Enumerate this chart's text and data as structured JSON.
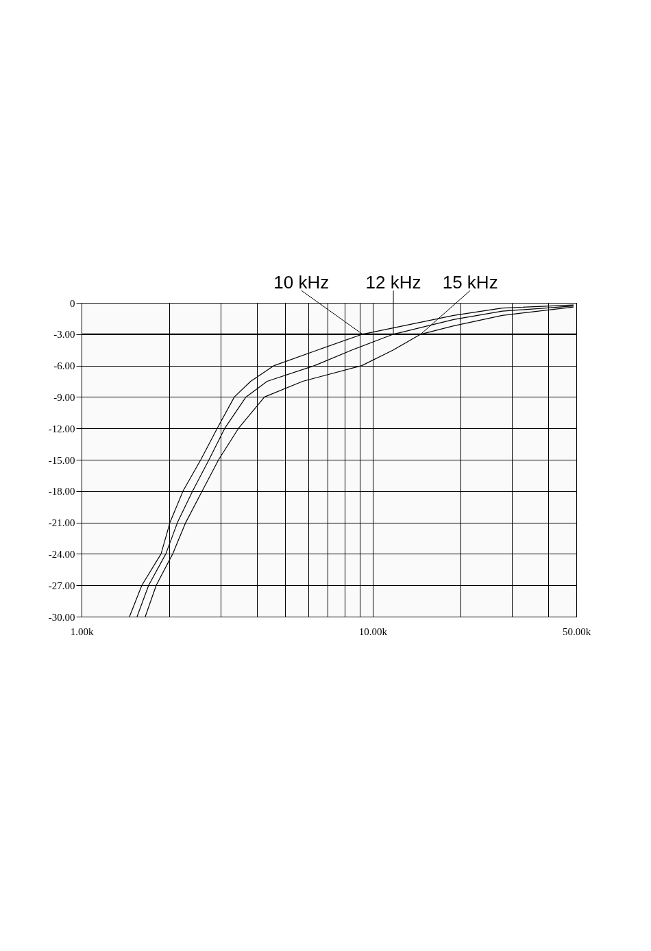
{
  "chart_data": {
    "type": "line",
    "log": "x",
    "legend": false,
    "grid": true,
    "marker": "none",
    "line_style": "solid",
    "xlim": [
      1000,
      50000
    ],
    "ylim": [
      -30,
      0
    ],
    "xticks": [
      {
        "value": 1000,
        "label": "1.00k"
      },
      {
        "value": 2000,
        "label": null
      },
      {
        "value": 3000,
        "label": null
      },
      {
        "value": 4000,
        "label": null
      },
      {
        "value": 5000,
        "label": null
      },
      {
        "value": 6000,
        "label": null
      },
      {
        "value": 7000,
        "label": null
      },
      {
        "value": 8000,
        "label": null
      },
      {
        "value": 9000,
        "label": null
      },
      {
        "value": 10000,
        "label": "10.00k"
      },
      {
        "value": 20000,
        "label": null
      },
      {
        "value": 30000,
        "label": null
      },
      {
        "value": 40000,
        "label": null
      },
      {
        "value": 50000,
        "label": "50.00k"
      }
    ],
    "yticks": [
      0,
      {
        "value": -3,
        "label": "-3.00"
      },
      {
        "value": -6,
        "label": "-6.00"
      },
      {
        "value": -9,
        "label": "-9.00"
      },
      {
        "value": -12,
        "label": "-12.00"
      },
      {
        "value": -15,
        "label": "-15.00"
      },
      {
        "value": -18,
        "label": "-18.00"
      },
      {
        "value": -21,
        "label": "-21.00"
      },
      {
        "value": -24,
        "label": "-24.00"
      },
      {
        "value": -27,
        "label": "-27.00"
      },
      {
        "value": -30,
        "label": "-30.00"
      }
    ],
    "ref_lines": [
      {
        "axis": "y",
        "value": -3,
        "color": "#000000"
      }
    ],
    "series": [
      {
        "name": "10 kHz",
        "color": "#000000",
        "x": [
          1461,
          1611,
          1875,
          2012,
          2230,
          2567,
          2923,
          3347,
          3810,
          4584,
          6480,
          9220,
          18950,
          27840,
          48900
        ],
        "values": [
          -30,
          -27,
          -24,
          -21,
          -18,
          -15,
          -12,
          -9,
          -7.5,
          -6,
          -4.5,
          -3,
          -1.2,
          -0.5,
          -0.2
        ]
      },
      {
        "name": "12 kHz",
        "color": "#000000",
        "x": [
          1551,
          1700,
          1947,
          2135,
          2406,
          2739,
          3102,
          3670,
          4340,
          6310,
          8500,
          11770,
          18950,
          27840,
          48900
        ],
        "values": [
          -30,
          -27,
          -24,
          -21,
          -18,
          -15,
          -12,
          -9,
          -7.5,
          -6,
          -4.5,
          -3,
          -1.6,
          -0.8,
          -0.3
        ]
      },
      {
        "name": "15 kHz",
        "color": "#000000",
        "x": [
          1655,
          1805,
          2056,
          2279,
          2595,
          2955,
          3458,
          4249,
          5750,
          9170,
          11770,
          14610,
          18950,
          27840,
          48900
        ],
        "values": [
          -30,
          -27,
          -24,
          -21,
          -18,
          -15,
          -12,
          -9,
          -7.5,
          -6,
          -4.5,
          -3,
          -2.2,
          -1.2,
          -0.4
        ]
      }
    ]
  }
}
